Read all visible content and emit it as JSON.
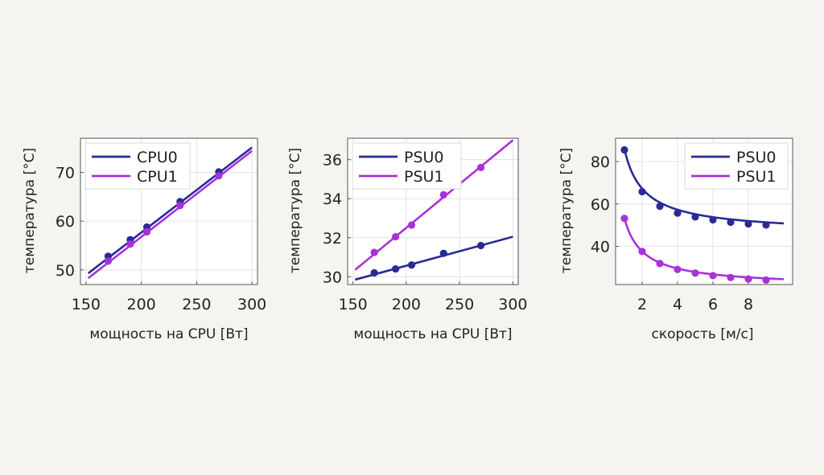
{
  "colors": {
    "series0": "#2a2a96",
    "series1": "#a832d6"
  },
  "chart_data": [
    {
      "type": "line",
      "xlabel": "мощность на CPU [Вт]",
      "ylabel": "температура [°C]",
      "xlim": [
        145,
        305
      ],
      "ylim": [
        47,
        77
      ],
      "xticks": [
        150,
        200,
        250,
        300
      ],
      "yticks": [
        50,
        60,
        70
      ],
      "grid": true,
      "legend": "top-left",
      "series": [
        {
          "name": "CPU0",
          "color": "#2a2a96",
          "points_x": [
            170,
            190,
            205,
            235,
            270
          ],
          "points_y": [
            52.8,
            56.2,
            58.8,
            64.0,
            70.1
          ],
          "fit_x": [
            152,
            300
          ],
          "fit_y": [
            49.3,
            75.1
          ]
        },
        {
          "name": "CPU1",
          "color": "#a832d6",
          "points_x": [
            170,
            190,
            205,
            235,
            270
          ],
          "points_y": [
            51.8,
            55.3,
            57.8,
            63.2,
            69.3
          ],
          "fit_x": [
            152,
            300
          ],
          "fit_y": [
            48.3,
            74.4
          ]
        }
      ]
    },
    {
      "type": "line",
      "xlabel": "мощность на CPU [Вт]",
      "ylabel": "температура [°C]",
      "xlim": [
        145,
        305
      ],
      "ylim": [
        29.6,
        37.1
      ],
      "xticks": [
        150,
        200,
        250,
        300
      ],
      "yticks": [
        30,
        32,
        34,
        36
      ],
      "grid": true,
      "legend": "top-left",
      "series": [
        {
          "name": "PSU0",
          "color": "#2a2a96",
          "points_x": [
            170,
            190,
            205,
            235,
            270
          ],
          "points_y": [
            30.2,
            30.4,
            30.6,
            31.2,
            31.6
          ],
          "fit_x": [
            152,
            300
          ],
          "fit_y": [
            29.85,
            32.05
          ]
        },
        {
          "name": "PSU1",
          "color": "#a832d6",
          "points_x": [
            170,
            190,
            205,
            235,
            270
          ],
          "points_y": [
            31.25,
            32.05,
            32.65,
            34.2,
            35.6
          ],
          "fit_x": [
            152,
            300
          ],
          "fit_y": [
            30.35,
            37.0
          ]
        }
      ]
    },
    {
      "type": "line",
      "xlabel": "скорость [м/с]",
      "ylabel": "температура [°C]",
      "xlim": [
        0.5,
        10.5
      ],
      "ylim": [
        22,
        91
      ],
      "xticks": [
        2,
        4,
        6,
        8
      ],
      "yticks": [
        40,
        60,
        80
      ],
      "grid": true,
      "legend": "top-right",
      "series": [
        {
          "name": "PSU0",
          "color": "#2a2a96",
          "points_x": [
            1,
            2,
            3,
            4,
            5,
            6,
            7,
            8,
            9
          ],
          "points_y": [
            85.5,
            65.8,
            58.9,
            55.7,
            53.9,
            52.5,
            51.4,
            50.6,
            50.1
          ],
          "fit": {
            "a": 45.8,
            "b": 40.0,
            "c": 0.9,
            "from": 1,
            "to": 10
          }
        },
        {
          "name": "PSU1",
          "color": "#a832d6",
          "points_x": [
            1,
            2,
            3,
            4,
            5,
            6,
            7,
            8,
            9
          ],
          "points_y": [
            53.2,
            37.6,
            31.9,
            29.1,
            27.4,
            26.2,
            25.3,
            24.6,
            24.1
          ],
          "fit": {
            "a": 20.9,
            "b": 32.3,
            "c": 0.95,
            "from": 1,
            "to": 10
          }
        }
      ]
    }
  ]
}
